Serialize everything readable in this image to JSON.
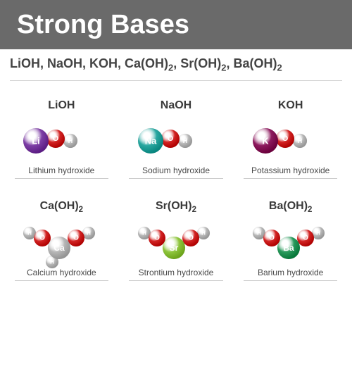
{
  "title": "Strong Bases",
  "banner": {
    "bg": "#6a6a6a",
    "height": 70,
    "font_size": 38
  },
  "formula_bar": {
    "items": [
      "LiOH",
      "NaOH",
      "KOH",
      "Ca(OH)₂",
      "Sr(OH)₂",
      "Ba(OH)₂"
    ],
    "font_size": 18
  },
  "atom_colors": {
    "Li": "#7e3fa6",
    "Na": "#2aa8a1",
    "K": "#8e1a5f",
    "Ca": "#b7b7b7",
    "Sr": "#8fc63d",
    "Ba": "#2a9a5c",
    "O": "#d32424",
    "H": "#b8b8b8"
  },
  "highlight_opacity": 0.35,
  "molecules": [
    {
      "formula": "LiOH",
      "name": "Lithium hydroxide",
      "type": "MOH",
      "metal": "Li",
      "metal_r": 18,
      "o_r": 13,
      "h_r": 10
    },
    {
      "formula": "NaOH",
      "name": "Sodium hydroxide",
      "type": "MOH",
      "metal": "Na",
      "metal_r": 18,
      "o_r": 13,
      "h_r": 10
    },
    {
      "formula": "KOH",
      "name": "Potassium hydroxide",
      "type": "MOH",
      "metal": "K",
      "metal_r": 18,
      "o_r": 13,
      "h_r": 10
    },
    {
      "formula": "Ca(OH)₂",
      "name": "Calcium hydroxide",
      "type": "MOH2",
      "metal": "Ca",
      "metal_r": 16,
      "o_r": 12,
      "h_r": 9
    },
    {
      "formula": "Sr(OH)₂",
      "name": "Strontium hydroxide",
      "type": "MOH2",
      "metal": "Sr",
      "metal_r": 16,
      "o_r": 12,
      "h_r": 9
    },
    {
      "formula": "Ba(OH)₂",
      "name": "Barium hydroxide",
      "type": "MOH2",
      "metal": "Ba",
      "metal_r": 16,
      "o_r": 12,
      "h_r": 9
    }
  ]
}
